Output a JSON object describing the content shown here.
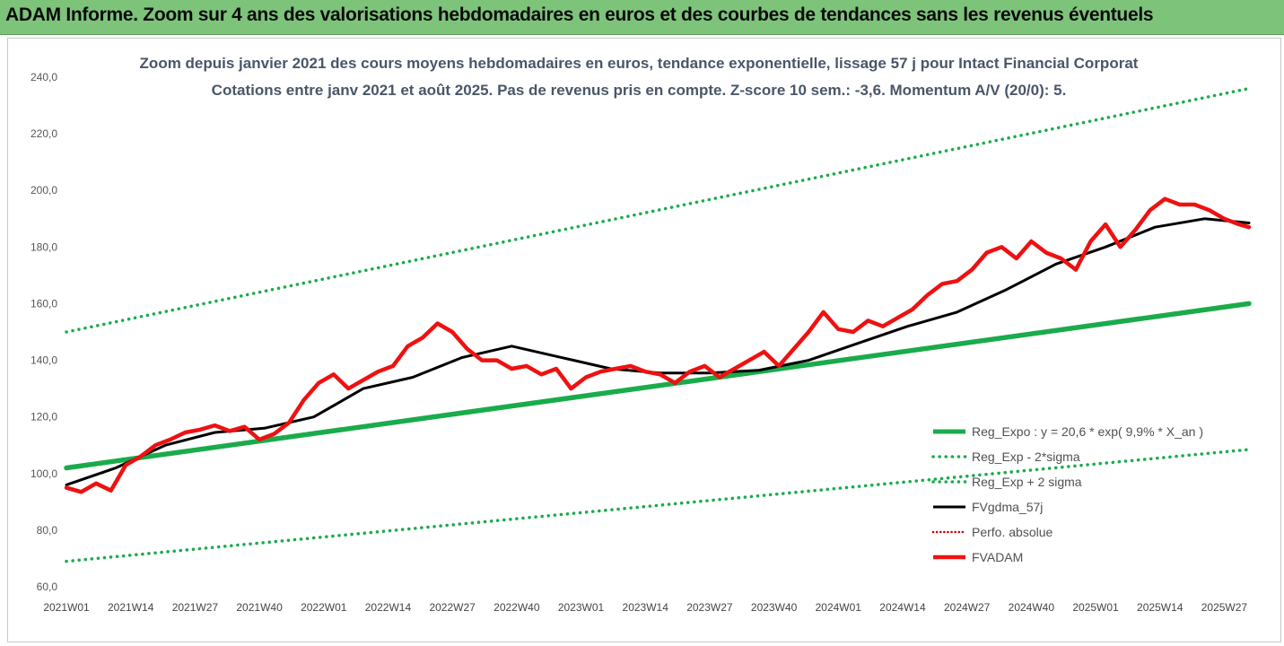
{
  "banner": {
    "title": "ADAM Informe. Zoom sur 4 ans des valorisations hebdomadaires en euros et des courbes de tendances sans les revenus éventuels"
  },
  "colors": {
    "banner_bg": "#7dc47a",
    "reg_expo": "#1aab4b",
    "fvgdma": "#000000",
    "fvadam": "#ee1111",
    "perfo": "#cc0000"
  },
  "chart_data": {
    "type": "line",
    "title_line1": "Zoom depuis janvier 2021 des cours moyens hebdomadaires en euros, tendance exponentielle, lissage 57 j pour Intact Financial Corporat",
    "title_line2": "Cotations entre janv 2021 et août 2025.  Pas de revenus pris en compte.  Z-score 10 sem.: -3,6. Momentum A/V (20/0): 5.",
    "ylim": [
      60,
      240
    ],
    "yticks": [
      "60,0",
      "80,0",
      "100,0",
      "120,0",
      "140,0",
      "160,0",
      "180,0",
      "200,0",
      "220,0",
      "240,0"
    ],
    "ytick_values": [
      60,
      80,
      100,
      120,
      140,
      160,
      180,
      200,
      220,
      240
    ],
    "x_categories": [
      "2021W01",
      "2021W14",
      "2021W27",
      "2021W40",
      "2022W01",
      "2022W14",
      "2022W27",
      "2022W40",
      "2023W01",
      "2023W14",
      "2023W27",
      "2023W40",
      "2024W01",
      "2024W14",
      "2024W27",
      "2024W40",
      "2025W01",
      "2025W14",
      "2025W27"
    ],
    "x_index_range": [
      0,
      239
    ],
    "legend_position": "bottom-right",
    "series": [
      {
        "name": "Reg_Expo : y = 20,6 * exp( 9,9% *  X_an )",
        "style": "solid-thick",
        "x": [
          0,
          239
        ],
        "y": [
          102,
          160
        ]
      },
      {
        "name": "Reg_Exp - 2*sigma",
        "style": "dotted",
        "x": [
          0,
          239
        ],
        "y": [
          69,
          108.5
        ]
      },
      {
        "name": "Reg_Exp + 2 sigma",
        "style": "dotted",
        "x": [
          0,
          239
        ],
        "y": [
          150,
          236
        ]
      },
      {
        "name": "FVgdma_57j",
        "style": "solid",
        "x": [
          0,
          10,
          20,
          30,
          40,
          50,
          60,
          70,
          80,
          90,
          100,
          110,
          120,
          130,
          140,
          150,
          160,
          170,
          180,
          190,
          200,
          210,
          220,
          230,
          239
        ],
        "y": [
          96,
          102,
          110,
          114.5,
          116,
          120,
          130,
          134,
          141,
          145,
          141,
          137,
          135.5,
          135.5,
          136.5,
          140,
          146,
          152,
          157,
          165,
          174,
          180,
          187,
          190,
          188.5
        ]
      },
      {
        "name": "Perfo. absolue",
        "style": "dotted-red",
        "x": [],
        "y": []
      },
      {
        "name": "FVADAM",
        "style": "solid-thick",
        "x": [
          0,
          3,
          6,
          9,
          12,
          15,
          18,
          21,
          24,
          27,
          30,
          33,
          36,
          39,
          42,
          45,
          48,
          51,
          54,
          57,
          60,
          63,
          66,
          69,
          72,
          75,
          78,
          81,
          84,
          87,
          90,
          93,
          96,
          99,
          102,
          105,
          108,
          111,
          114,
          117,
          120,
          123,
          126,
          129,
          132,
          135,
          138,
          141,
          144,
          147,
          150,
          153,
          156,
          159,
          162,
          165,
          168,
          171,
          174,
          177,
          180,
          183,
          186,
          189,
          192,
          195,
          198,
          201,
          204,
          207,
          210,
          213,
          216,
          219,
          222,
          225,
          228,
          231,
          234,
          237,
          239
        ],
        "y": [
          95,
          93.5,
          96.5,
          94,
          103,
          106,
          110,
          112,
          114.5,
          115.5,
          117,
          115,
          116.5,
          112,
          114,
          118,
          126,
          132,
          135,
          130,
          133,
          136,
          138,
          145,
          148,
          153,
          150,
          144,
          140,
          140,
          137,
          138,
          135,
          137,
          130,
          134,
          136,
          137,
          138,
          136,
          135,
          132,
          136,
          138,
          134,
          137,
          140,
          143,
          138,
          144,
          150,
          157,
          151,
          150,
          154,
          152,
          155,
          158,
          163,
          167,
          168,
          172,
          178,
          180,
          176,
          182,
          178,
          176,
          172,
          182,
          188,
          180,
          186,
          193,
          197,
          195,
          195,
          193,
          190,
          188,
          187
        ]
      }
    ]
  }
}
